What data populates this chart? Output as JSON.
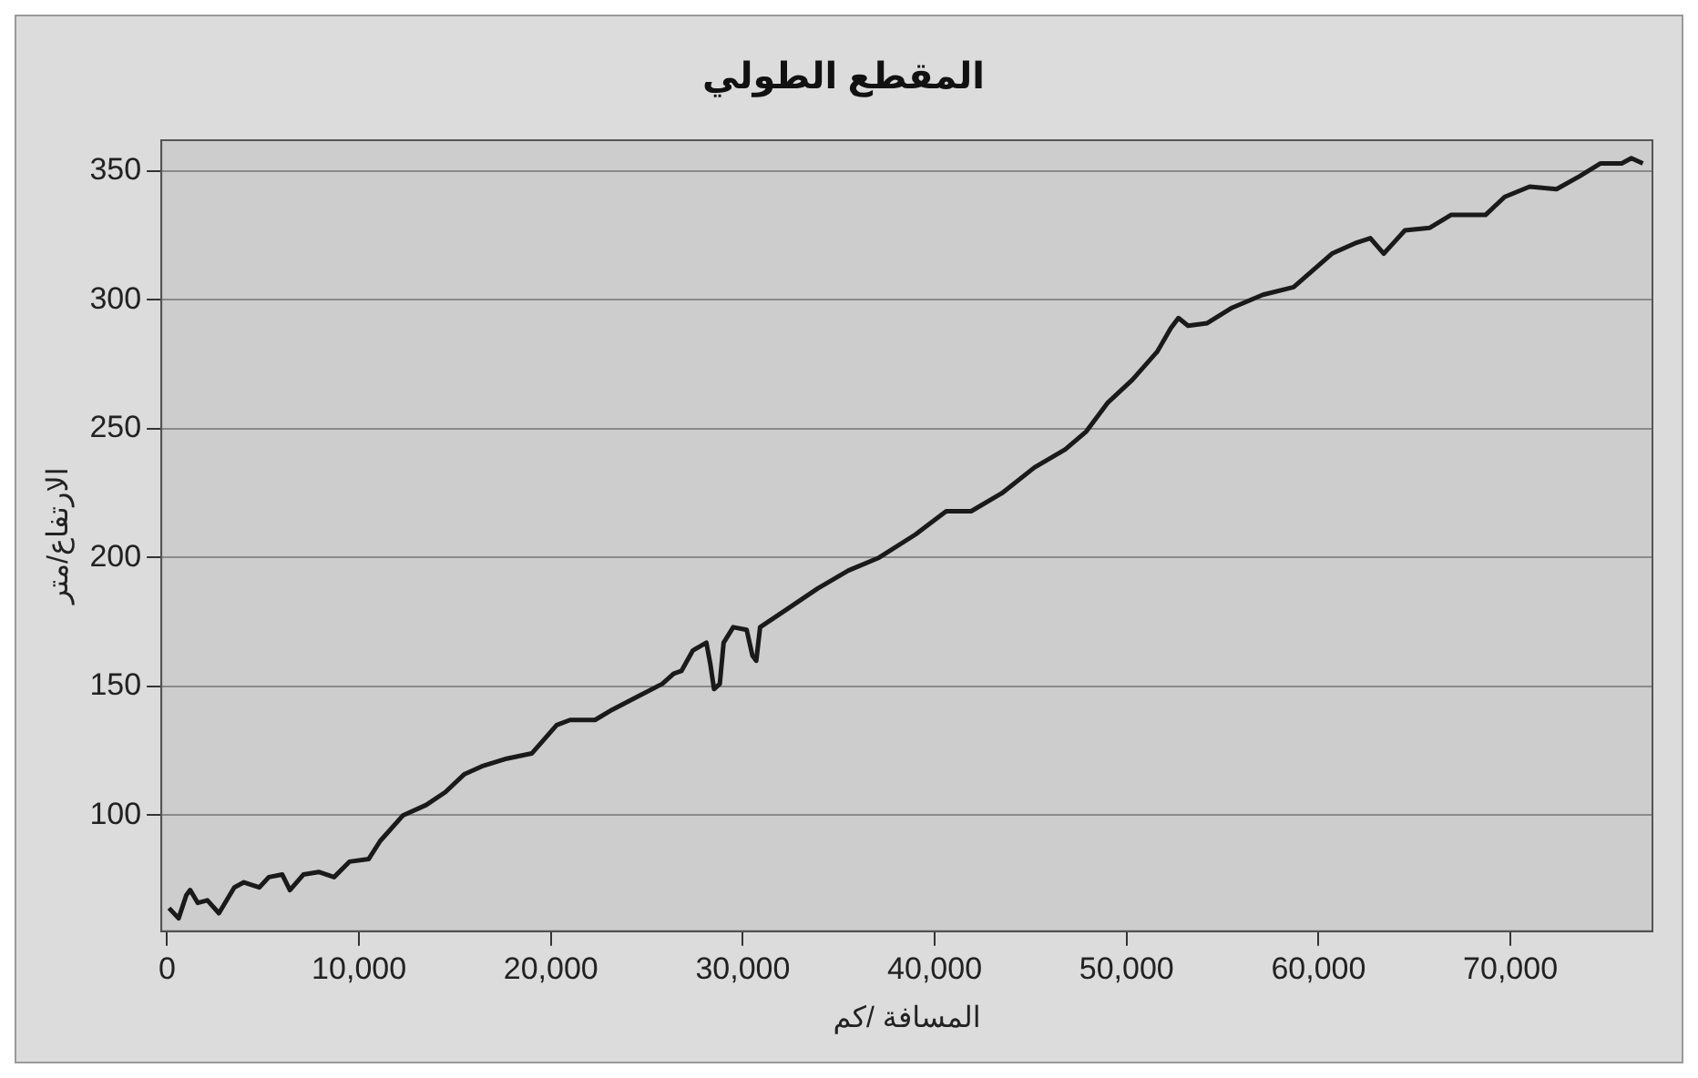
{
  "chart_data": {
    "type": "line",
    "title": "المقطع الطولي",
    "xlabel": "المسافة /كم",
    "ylabel": "الارتفاع/متر",
    "xlim": [
      -300,
      77400
    ],
    "ylim": [
      55,
      362
    ],
    "xticks": [
      0,
      {
        "value": 10000,
        "label": "10,000"
      },
      {
        "value": 20000,
        "label": "20,000"
      },
      {
        "value": 30000,
        "label": "30,000"
      },
      {
        "value": 40000,
        "label": "40,000"
      },
      {
        "value": 50000,
        "label": "50,000"
      },
      {
        "value": 60000,
        "label": "60,000"
      },
      {
        "value": 70000,
        "label": "70,000"
      }
    ],
    "yticks": [
      100,
      150,
      200,
      250,
      300,
      350
    ],
    "grid": "y",
    "legend": false,
    "marker": "none",
    "line_style": "solid",
    "series": [
      {
        "color": "#1a1a1a",
        "x": [
          100,
          600,
          1000,
          1200,
          1600,
          2100,
          2700,
          3500,
          4000,
          4800,
          5300,
          6000,
          6400,
          7100,
          7900,
          8700,
          9500,
          10500,
          11100,
          12300,
          13500,
          14500,
          15500,
          16400,
          17700,
          19000,
          20300,
          21000,
          22300,
          23200,
          24500,
          25800,
          26400,
          26800,
          27400,
          28100,
          28300,
          28500,
          28800,
          29000,
          29500,
          30200,
          30500,
          30700,
          30900,
          32300,
          33900,
          35500,
          37100,
          39000,
          40600,
          41900,
          43500,
          45200,
          46800,
          47900,
          49000,
          50300,
          51600,
          52300,
          52700,
          53200,
          54200,
          55500,
          57100,
          58700,
          60700,
          61900,
          62700,
          63400,
          64500,
          65800,
          66900,
          68700,
          69700,
          71000,
          72400,
          73600,
          74700,
          75800,
          76300,
          76900
        ],
        "values": [
          64,
          60,
          69,
          71,
          66,
          67,
          62,
          72,
          74,
          72,
          76,
          77,
          71,
          77,
          78,
          76,
          82,
          83,
          90,
          100,
          104,
          109,
          116,
          119,
          122,
          124,
          135,
          137,
          137,
          141,
          146,
          151,
          155,
          156,
          164,
          167,
          159,
          149,
          151,
          167,
          173,
          172,
          162,
          160,
          173,
          180,
          188,
          195,
          200,
          209,
          218,
          218,
          225,
          235,
          242,
          249,
          260,
          269,
          280,
          289,
          293,
          290,
          291,
          297,
          302,
          305,
          318,
          322,
          324,
          318,
          327,
          328,
          333,
          333,
          340,
          344,
          343,
          348,
          353,
          353,
          355,
          353
        ]
      }
    ]
  }
}
